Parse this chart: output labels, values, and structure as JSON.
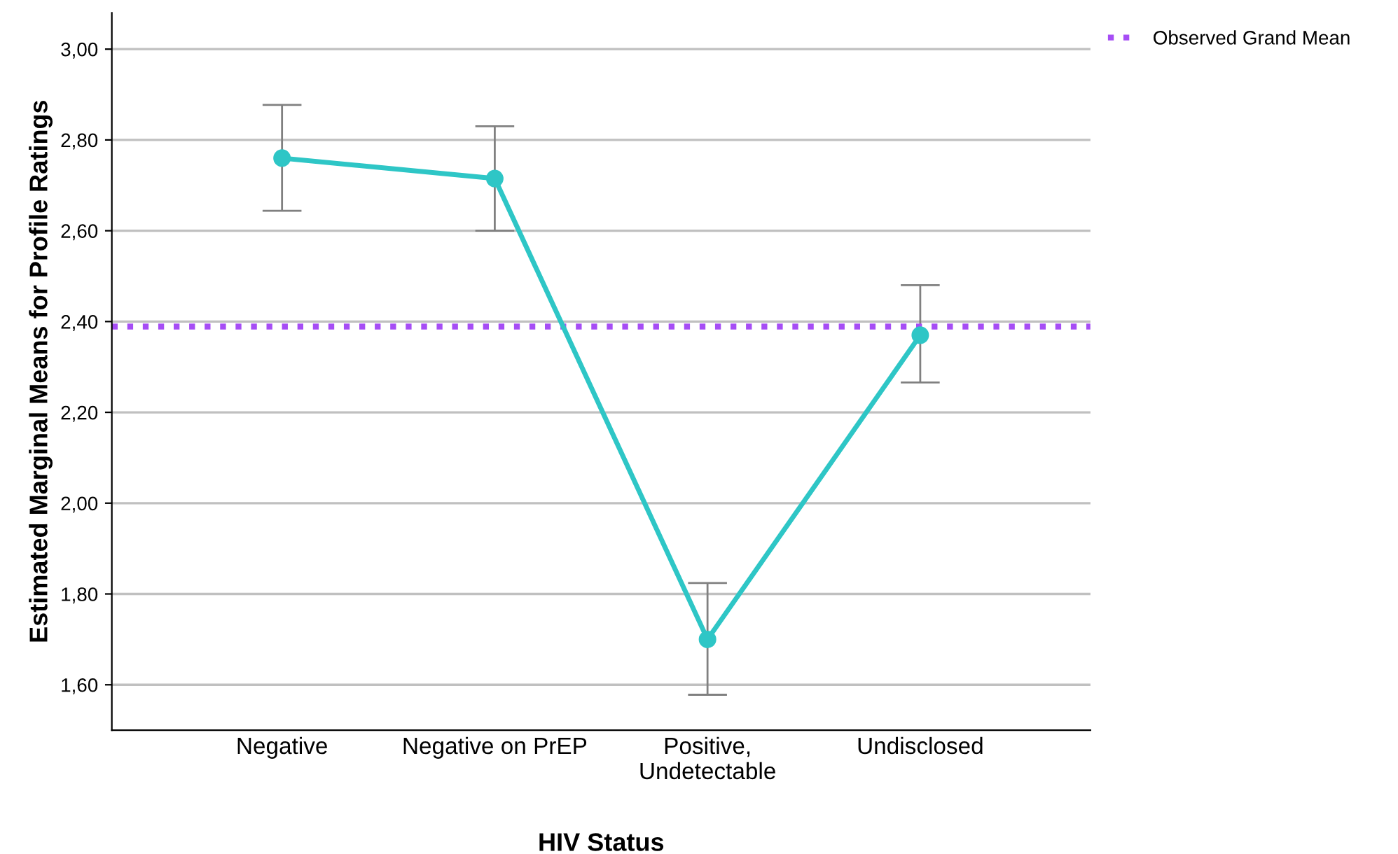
{
  "chart_data": {
    "type": "line",
    "xlabel": "HIV Status",
    "ylabel": "Estimated Marginal Means for Profile Ratings",
    "categories": [
      "Negative",
      "Negative on PrEP",
      "Positive,\nUndetectable",
      "Undisclosed"
    ],
    "series": [
      {
        "color": "#2ec6c6",
        "values": [
          2.76,
          2.715,
          1.7,
          2.37
        ],
        "errors": [
          [
            2.644,
            2.877
          ],
          [
            2.6,
            2.83
          ],
          [
            1.578,
            1.824
          ],
          [
            2.266,
            2.48
          ]
        ]
      }
    ],
    "marker": "circle",
    "line_style": "solid",
    "ylim": [
      1.5,
      3.08
    ],
    "yticks": [
      {
        "value": 1.6,
        "label": "1,60"
      },
      {
        "value": 1.8,
        "label": "1,80"
      },
      {
        "value": 2.0,
        "label": "2,00"
      },
      {
        "value": 2.2,
        "label": "2,20"
      },
      {
        "value": 2.4,
        "label": "2,40"
      },
      {
        "value": 2.6,
        "label": "2,60"
      },
      {
        "value": 2.8,
        "label": "2,80"
      },
      {
        "value": 3.0,
        "label": "3,00"
      }
    ],
    "ref_lines": [
      {
        "axis": "y",
        "value": 2.389,
        "label": "Observed Grand Mean",
        "color": "#a64df5",
        "line_style": "dotted"
      }
    ],
    "grid": "y",
    "legend": "top right"
  }
}
